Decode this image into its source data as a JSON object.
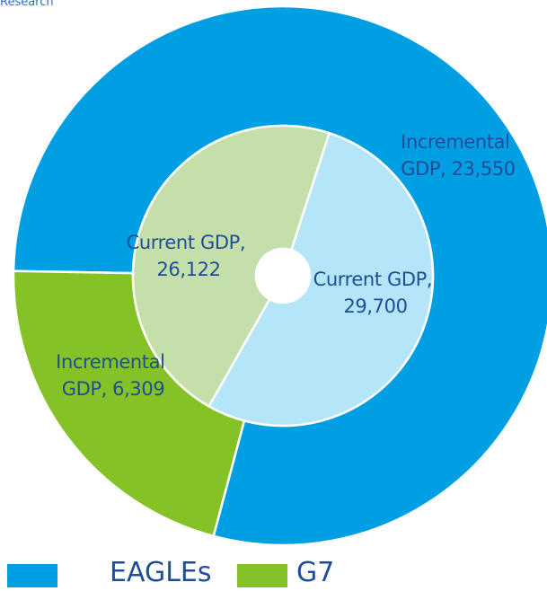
{
  "source_label": "Research",
  "colors": {
    "eagles_outer": "#009fe3",
    "eagles_inner": "#b5e5f8",
    "g7_outer": "#84c225",
    "g7_inner": "#c4dfaa",
    "label": "#1f4e96"
  },
  "legend": [
    {
      "label": "EAGLEs",
      "color": "#009fe3"
    },
    {
      "label": "G7",
      "color": "#84c225"
    }
  ],
  "chart_data": {
    "type": "pie",
    "subtype": "nested-donut",
    "rings": [
      {
        "ring": "inner",
        "slices": [
          {
            "group": "EAGLEs",
            "label_line1": "Current GDP,",
            "label_line2": "29,700",
            "value": 29700
          },
          {
            "group": "G7",
            "label_line1": "Current GDP,",
            "label_line2": "26,122",
            "value": 26122
          }
        ]
      },
      {
        "ring": "outer",
        "slices": [
          {
            "group": "EAGLEs",
            "label_line1": "Incremental",
            "label_line2": "GDP, 23,550",
            "value": 23550
          },
          {
            "group": "G7",
            "label_line1": "Incremental",
            "label_line2": "GDP, 6,309",
            "value": 6309
          }
        ]
      }
    ]
  }
}
